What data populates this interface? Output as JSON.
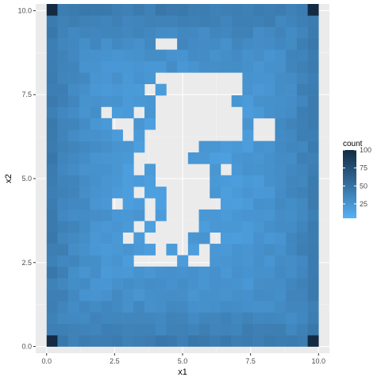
{
  "chart_data": {
    "type": "heatmap",
    "title": "",
    "xlabel": "x1",
    "ylabel": "x2",
    "xlim": [
      -0.4,
      10.4
    ],
    "ylim": [
      -0.2,
      10.2
    ],
    "x_ticks": [
      "0.0",
      "2.5",
      "5.0",
      "7.5",
      "10.0"
    ],
    "x_tick_values": [
      0,
      2.5,
      5,
      7.5,
      10
    ],
    "y_ticks": [
      "0.0",
      "2.5",
      "5.0",
      "7.5",
      "10.0"
    ],
    "y_tick_values": [
      0,
      2.5,
      5,
      7.5,
      10
    ],
    "grid": true,
    "legend": {
      "title": "count",
      "position": "right",
      "labels": [
        "100",
        "75",
        "50",
        "25"
      ],
      "label_values": [
        100,
        75,
        50,
        25
      ],
      "min": 5,
      "max": 100,
      "low_color": "#56B1F7",
      "high_color": "#132B43"
    },
    "bin_width": [
      0.4,
      0.34
    ],
    "x_centers_first": 0.2,
    "y_centers_first": 0.17,
    "n_cols": 25,
    "n_rows": 30,
    "empty_cells": [
      [
        8,
        7
      ],
      [
        9,
        7
      ],
      [
        10,
        7
      ],
      [
        11,
        7
      ],
      [
        13,
        7
      ],
      [
        14,
        7
      ],
      [
        10,
        8
      ],
      [
        12,
        8
      ],
      [
        14,
        8
      ],
      [
        7,
        9
      ],
      [
        9,
        9
      ],
      [
        10,
        9
      ],
      [
        11,
        9
      ],
      [
        12,
        9
      ],
      [
        15,
        9
      ],
      [
        8,
        10
      ],
      [
        10,
        10
      ],
      [
        11,
        10
      ],
      [
        12,
        10
      ],
      [
        13,
        10
      ],
      [
        9,
        11
      ],
      [
        11,
        11
      ],
      [
        12,
        11
      ],
      [
        13,
        11
      ],
      [
        6,
        12
      ],
      [
        9,
        12
      ],
      [
        11,
        12
      ],
      [
        12,
        12
      ],
      [
        13,
        12
      ],
      [
        14,
        12
      ],
      [
        15,
        12
      ],
      [
        8,
        13
      ],
      [
        11,
        13
      ],
      [
        12,
        13
      ],
      [
        13,
        13
      ],
      [
        14,
        13
      ],
      [
        10,
        14
      ],
      [
        11,
        14
      ],
      [
        12,
        14
      ],
      [
        13,
        14
      ],
      [
        14,
        14
      ],
      [
        8,
        15
      ],
      [
        10,
        15
      ],
      [
        11,
        15
      ],
      [
        12,
        15
      ],
      [
        13,
        15
      ],
      [
        14,
        15
      ],
      [
        16,
        15
      ],
      [
        8,
        16
      ],
      [
        9,
        16
      ],
      [
        10,
        16
      ],
      [
        11,
        16
      ],
      [
        12,
        16
      ],
      [
        9,
        17
      ],
      [
        10,
        17
      ],
      [
        11,
        17
      ],
      [
        12,
        17
      ],
      [
        13,
        17
      ],
      [
        7,
        18
      ],
      [
        9,
        18
      ],
      [
        10,
        18
      ],
      [
        11,
        18
      ],
      [
        12,
        18
      ],
      [
        13,
        18
      ],
      [
        14,
        18
      ],
      [
        15,
        18
      ],
      [
        16,
        18
      ],
      [
        17,
        18
      ],
      [
        19,
        18
      ],
      [
        20,
        18
      ],
      [
        6,
        19
      ],
      [
        7,
        19
      ],
      [
        10,
        19
      ],
      [
        11,
        19
      ],
      [
        12,
        19
      ],
      [
        13,
        19
      ],
      [
        14,
        19
      ],
      [
        15,
        19
      ],
      [
        16,
        19
      ],
      [
        17,
        19
      ],
      [
        19,
        19
      ],
      [
        20,
        19
      ],
      [
        5,
        20
      ],
      [
        8,
        20
      ],
      [
        10,
        20
      ],
      [
        11,
        20
      ],
      [
        12,
        20
      ],
      [
        13,
        20
      ],
      [
        14,
        20
      ],
      [
        15,
        20
      ],
      [
        16,
        20
      ],
      [
        17,
        20
      ],
      [
        10,
        21
      ],
      [
        11,
        21
      ],
      [
        12,
        21
      ],
      [
        13,
        21
      ],
      [
        14,
        21
      ],
      [
        15,
        21
      ],
      [
        16,
        21
      ],
      [
        9,
        22
      ],
      [
        11,
        22
      ],
      [
        12,
        22
      ],
      [
        13,
        22
      ],
      [
        14,
        22
      ],
      [
        15,
        22
      ],
      [
        16,
        22
      ],
      [
        17,
        22
      ],
      [
        10,
        23
      ],
      [
        11,
        23
      ],
      [
        12,
        23
      ],
      [
        13,
        23
      ],
      [
        14,
        23
      ],
      [
        15,
        23
      ],
      [
        16,
        23
      ],
      [
        17,
        23
      ],
      [
        10,
        26
      ],
      [
        11,
        26
      ]
    ],
    "dark_cells": [
      {
        "col": 0,
        "row": 0,
        "count": 100
      },
      {
        "col": 24,
        "row": 0,
        "count": 100
      },
      {
        "col": 0,
        "row": 29,
        "count": 100
      },
      {
        "col": 24,
        "row": 29,
        "count": 100
      }
    ]
  }
}
